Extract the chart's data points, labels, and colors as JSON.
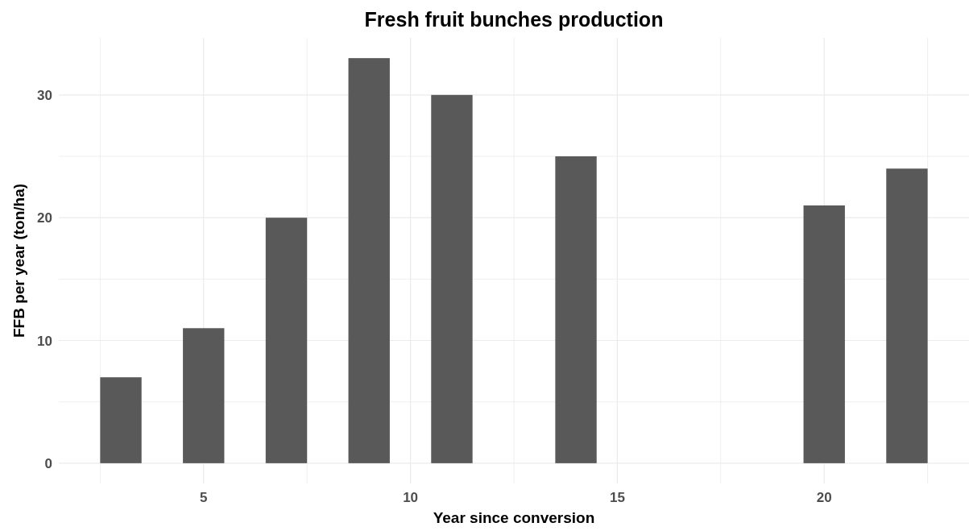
{
  "chart_data": {
    "type": "bar",
    "title": "Fresh fruit bunches production",
    "xlabel": "Year since conversion",
    "ylabel": "FFB per year (ton/ha)",
    "x": [
      3,
      5,
      7,
      9,
      11,
      14,
      20,
      22
    ],
    "values": [
      7,
      11,
      20,
      33,
      30,
      25,
      21,
      24
    ],
    "color": "#595959",
    "xlim": [
      1.5,
      23.5
    ],
    "xticks": [
      {
        "value": 2.5,
        "label": null
      },
      5,
      {
        "value": 7.5,
        "label": null
      },
      10,
      {
        "value": 12.5,
        "label": null
      },
      15,
      {
        "value": 17.5,
        "label": null
      },
      20,
      {
        "value": 22.5,
        "label": null
      }
    ],
    "ylim": [
      -1.65,
      34.65
    ],
    "yticks": [
      0,
      {
        "value": 5,
        "label": null
      },
      10,
      {
        "value": 15,
        "label": null
      },
      20,
      {
        "value": 25,
        "label": null
      },
      30
    ],
    "grid": true
  }
}
